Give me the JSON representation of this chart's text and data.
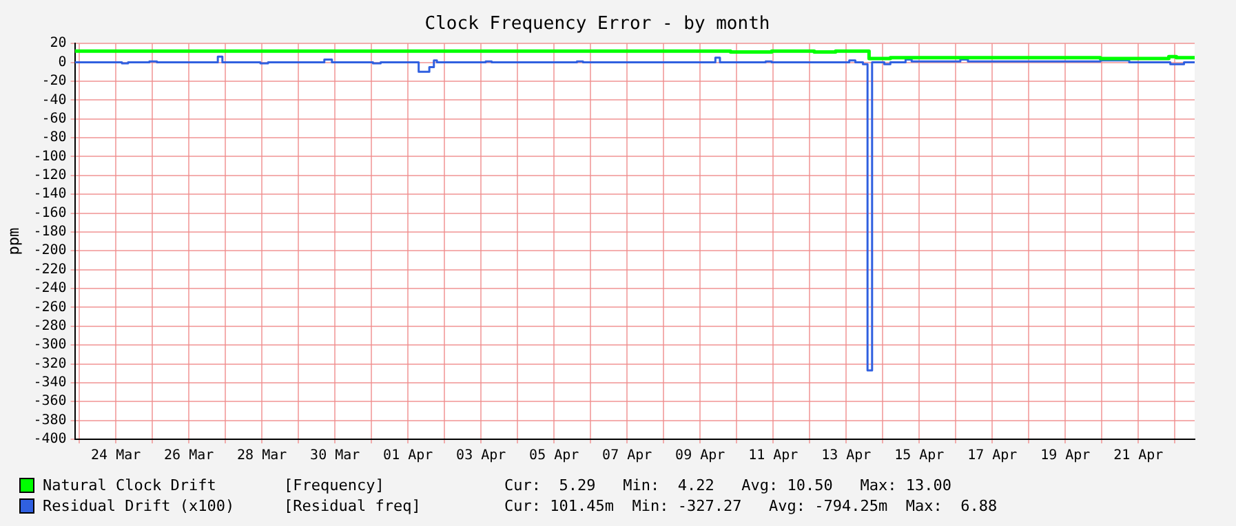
{
  "chart_data": {
    "type": "step",
    "title": "Clock Frequency Error - by month",
    "ylabel": "ppm",
    "xlim": [
      "--03-22T21:00",
      "--04-22T13:00"
    ],
    "xticks": [
      {
        "value": "--03-23",
        "label": null
      },
      {
        "value": "--03-24",
        "label": "24 Mar"
      },
      {
        "value": "--03-25",
        "label": null
      },
      {
        "value": "--03-26",
        "label": "26 Mar"
      },
      {
        "value": "--03-27",
        "label": null
      },
      {
        "value": "--03-28",
        "label": "28 Mar"
      },
      {
        "value": "--03-29",
        "label": null
      },
      {
        "value": "--03-30",
        "label": "30 Mar"
      },
      {
        "value": "--03-31",
        "label": null
      },
      {
        "value": "--04-01",
        "label": "01 Apr"
      },
      {
        "value": "--04-02",
        "label": null
      },
      {
        "value": "--04-03",
        "label": "03 Apr"
      },
      {
        "value": "--04-04",
        "label": null
      },
      {
        "value": "--04-05",
        "label": "05 Apr"
      },
      {
        "value": "--04-06",
        "label": null
      },
      {
        "value": "--04-07",
        "label": "07 Apr"
      },
      {
        "value": "--04-08",
        "label": null
      },
      {
        "value": "--04-09",
        "label": "09 Apr"
      },
      {
        "value": "--04-10",
        "label": null
      },
      {
        "value": "--04-11",
        "label": "11 Apr"
      },
      {
        "value": "--04-12",
        "label": null
      },
      {
        "value": "--04-13",
        "label": "13 Apr"
      },
      {
        "value": "--04-14",
        "label": null
      },
      {
        "value": "--04-15",
        "label": "15 Apr"
      },
      {
        "value": "--04-16",
        "label": null
      },
      {
        "value": "--04-17",
        "label": "17 Apr"
      },
      {
        "value": "--04-18",
        "label": null
      },
      {
        "value": "--04-19",
        "label": "19 Apr"
      },
      {
        "value": "--04-20",
        "label": null
      },
      {
        "value": "--04-21",
        "label": "21 Apr"
      },
      {
        "value": "--04-22",
        "label": null
      }
    ],
    "ylim": [
      -400,
      20
    ],
    "yticks": [
      -400,
      -380,
      -360,
      -340,
      -320,
      -300,
      -280,
      -260,
      -240,
      -220,
      -200,
      -180,
      -160,
      -140,
      -120,
      -100,
      -80,
      -60,
      -40,
      -20,
      0,
      20
    ],
    "grid": true,
    "legend": "bottom",
    "series": [
      {
        "name": "Natural Clock Drift",
        "color": "#00ff00",
        "x": [
          "--03-22T21:00",
          "--04-09T15:00",
          "--04-09T20:00",
          "--04-10T19:00",
          "--04-10T23:00",
          "--04-11T22:00",
          "--04-12T03:00",
          "--04-12T12:00",
          "--04-12T17:00",
          "--04-13T15:00",
          "--04-14T05:00",
          "--04-16T03:00",
          "--04-19T23:00",
          "--04-21T17:00",
          "--04-21T20:00",
          "--04-22T01:00",
          "--04-22T13:00"
        ],
        "values": [
          12,
          12,
          11,
          11,
          12,
          12,
          11,
          11,
          12,
          4,
          5,
          5,
          4,
          4,
          6,
          5,
          5
        ]
      },
      {
        "name": "Residual Drift (x100)",
        "color": "#3060e0",
        "x": [
          "--03-22T21:00",
          "--03-24T04:00",
          "--03-24T08:00",
          "--03-24T22:00",
          "--03-25T03:00",
          "--03-26T19:00",
          "--03-26T22:00",
          "--03-27T23:00",
          "--03-28T04:00",
          "--03-29T17:00",
          "--03-29T22:00",
          "--03-31T01:00",
          "--03-31T06:00",
          "--04-01T07:00",
          "--04-01T12:00",
          "--04-01T14:00",
          "--04-01T17:00",
          "--04-01T19:00",
          "--04-03T03:00",
          "--04-03T07:00",
          "--04-05T15:00",
          "--04-05T19:00",
          "--04-07T17:00",
          "--04-09T10:00",
          "--04-09T13:00",
          "--04-10T19:00",
          "--04-10T23:00",
          "--04-13T02:00",
          "--04-13T06:00",
          "--04-13T11:00",
          "--04-13T14:00",
          "--04-13T16:00",
          "--04-13T17:00",
          "--04-14T01:00",
          "--04-14T05:00",
          "--04-14T15:00",
          "--04-14T19:00",
          "--04-16T03:00",
          "--04-16T08:00",
          "--04-18T10:00",
          "--04-19T23:00",
          "--04-20T18:00",
          "--04-21T21:00",
          "--04-22T06:00",
          "--04-22T13:00"
        ],
        "values": [
          0,
          -1,
          0,
          1,
          0,
          6,
          0,
          -1,
          0,
          3,
          0,
          -1,
          0,
          -10,
          -10,
          -5,
          2,
          0,
          1,
          0,
          1,
          0,
          0,
          5,
          0,
          1,
          0,
          2,
          0,
          -2,
          -327,
          -327,
          0,
          -2,
          0,
          3,
          1,
          3,
          1,
          1,
          2,
          0,
          -2,
          0,
          0
        ]
      }
    ],
    "annotations": [
      "[Frequency]",
      "Cur:  5.29   Min:  4.22   Avg: 10.50   Max: 13.00",
      "[Residual freq]",
      "Cur: 101.45m  Min: -327.27   Avg: -794.25m  Max:  6.88"
    ]
  }
}
